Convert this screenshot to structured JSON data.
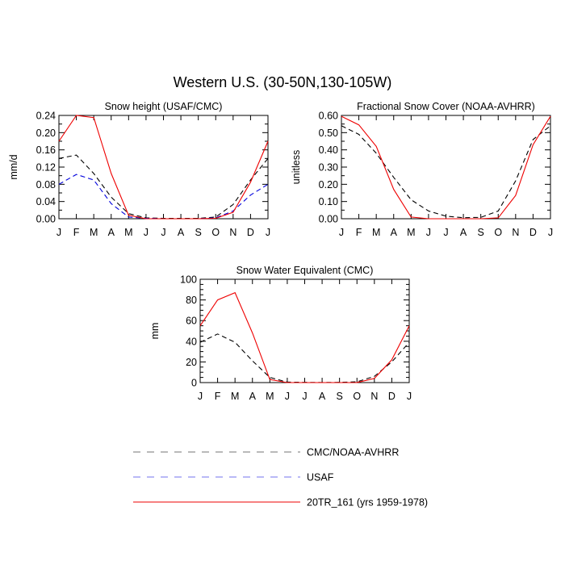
{
  "title": "Western U.S. (30-50N,130-105W)",
  "months": [
    "J",
    "F",
    "M",
    "A",
    "M",
    "J",
    "J",
    "A",
    "S",
    "O",
    "N",
    "D",
    "J"
  ],
  "colors": {
    "cmc": "#000000",
    "usaf": "#0000dd",
    "model": "#ee0000"
  },
  "legend": [
    {
      "key": "cmc",
      "label": "CMC/NOAA-AVHRR",
      "dash": "dashed"
    },
    {
      "key": "usaf",
      "label": "USAF",
      "dash": "dashed"
    },
    {
      "key": "model",
      "label": "20TR_161 (yrs 1959-1978)",
      "dash": "solid"
    }
  ],
  "chart_data": [
    {
      "type": "line",
      "title": "Snow height (USAF/CMC)",
      "ylabel": "mm/d",
      "ylim": [
        0,
        0.24
      ],
      "yticks": [
        "0.00",
        "0.04",
        "0.08",
        "0.12",
        "0.16",
        "0.20",
        "0.24"
      ],
      "x": [
        "J",
        "F",
        "M",
        "A",
        "M",
        "J",
        "J",
        "A",
        "S",
        "O",
        "N",
        "D",
        "J"
      ],
      "series": [
        {
          "key": "cmc",
          "values": [
            0.14,
            0.148,
            0.105,
            0.05,
            0.012,
            0.002,
            0.001,
            0.001,
            0.001,
            0.004,
            0.033,
            0.09,
            0.14
          ]
        },
        {
          "key": "usaf",
          "values": [
            0.08,
            0.103,
            0.09,
            0.035,
            0.004,
            0.001,
            0.0,
            0.0,
            0.0,
            0.002,
            0.018,
            0.055,
            0.08
          ]
        },
        {
          "key": "model",
          "values": [
            0.18,
            0.24,
            0.235,
            0.105,
            0.008,
            0.0,
            0.0,
            0.0,
            0.0,
            0.001,
            0.015,
            0.085,
            0.18
          ]
        }
      ]
    },
    {
      "type": "line",
      "title": "Fractional Snow Cover (NOAA-AVHRR)",
      "ylabel": "unitless",
      "ylim": [
        0,
        0.6
      ],
      "yticks": [
        "0.00",
        "0.10",
        "0.20",
        "0.30",
        "0.40",
        "0.50",
        "0.60"
      ],
      "x": [
        "J",
        "F",
        "M",
        "A",
        "M",
        "J",
        "J",
        "A",
        "S",
        "O",
        "N",
        "D",
        "J"
      ],
      "series": [
        {
          "key": "cmc",
          "values": [
            0.54,
            0.49,
            0.38,
            0.24,
            0.11,
            0.045,
            0.015,
            0.006,
            0.008,
            0.045,
            0.22,
            0.46,
            0.54
          ]
        },
        {
          "key": "model",
          "values": [
            0.595,
            0.545,
            0.42,
            0.17,
            0.01,
            0.0,
            0.0,
            0.0,
            0.0,
            0.005,
            0.135,
            0.43,
            0.595
          ]
        }
      ]
    },
    {
      "type": "line",
      "title": "Snow Water Equivalent (CMC)",
      "ylabel": "mm",
      "ylim": [
        0,
        100
      ],
      "yticks": [
        "0",
        "20",
        "40",
        "60",
        "80",
        "100"
      ],
      "x": [
        "J",
        "F",
        "M",
        "A",
        "M",
        "J",
        "J",
        "A",
        "S",
        "O",
        "N",
        "D",
        "J"
      ],
      "series": [
        {
          "key": "cmc",
          "values": [
            39,
            47,
            39,
            21,
            5,
            0.5,
            0.2,
            0.1,
            0.2,
            0.8,
            6,
            20,
            39
          ]
        },
        {
          "key": "model",
          "values": [
            55,
            80,
            87,
            48,
            3,
            0,
            0,
            0,
            0,
            0.1,
            4,
            22,
            55
          ]
        }
      ]
    }
  ]
}
